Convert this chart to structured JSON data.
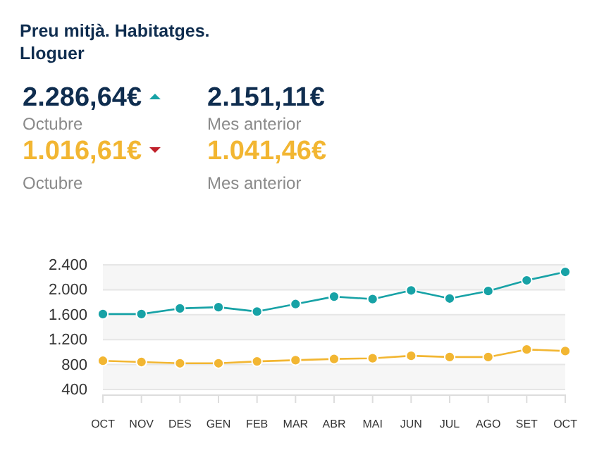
{
  "chart_data": {
    "type": "line",
    "title": "Preu mitjà. Habitatges. Lloguer",
    "annotations": [
      "2.286,64€",
      "Octubre",
      "2.151,11€",
      "Mes anterior",
      "1.016,61€",
      "Octubre",
      "1.041,46€",
      "Mes anterior"
    ],
    "categories": [
      "OCT",
      "NOV",
      "DES",
      "GEN",
      "FEB",
      "MAR",
      "ABR",
      "MAI",
      "JUN",
      "JUL",
      "AGO",
      "SET",
      "OCT"
    ],
    "series": [
      {
        "color": "#17a2a6",
        "values": [
          1610,
          1610,
          1700,
          1720,
          1650,
          1770,
          1890,
          1850,
          1990,
          1860,
          1980,
          2151.11,
          2286.64
        ]
      },
      {
        "color": "#f2b632",
        "values": [
          860,
          840,
          820,
          820,
          850,
          870,
          890,
          900,
          940,
          920,
          920,
          1041.46,
          1016.61
        ]
      }
    ],
    "ylim": [
      320,
      2400
    ],
    "yticks": [
      {
        "value": 400,
        "label": "400"
      },
      {
        "value": 800,
        "label": "800"
      },
      {
        "value": 1200,
        "label": "1.200"
      },
      {
        "value": 1600,
        "label": "1.600"
      },
      {
        "value": 2000,
        "label": "2.000"
      },
      {
        "value": 2400,
        "label": "2.400"
      }
    ],
    "grid": "y",
    "marker": "circle",
    "line_style": "solid"
  }
}
